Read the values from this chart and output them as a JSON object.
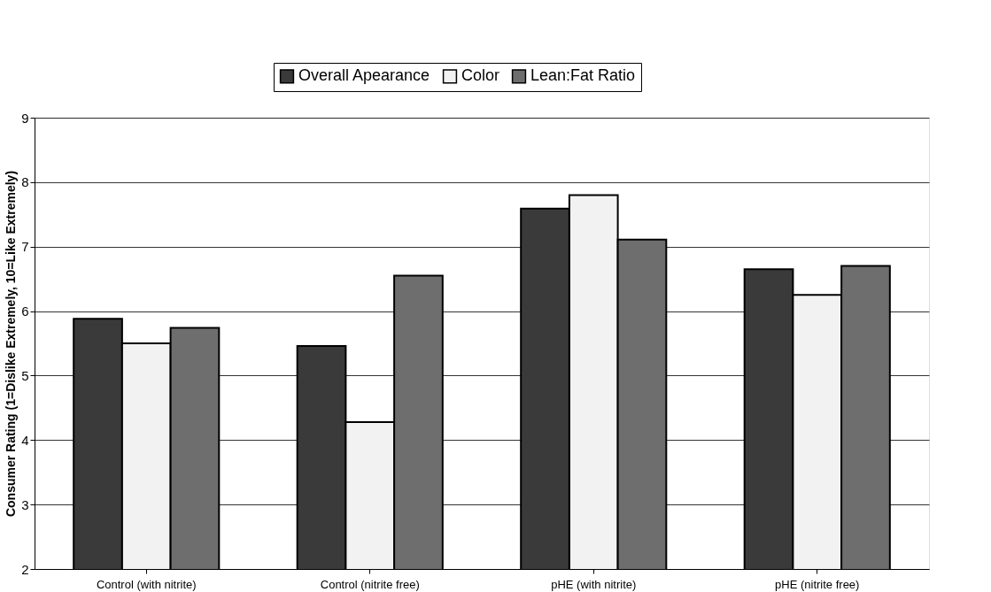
{
  "chart_data": {
    "type": "bar",
    "ylabel": "Consumer Rating (1=Dislike Extremely, 10=Like Extremely)",
    "categories": [
      "Control (with nitrite)",
      "Control (nitrite free)",
      "pHE (with nitrite)",
      "pHE (nitrite free)"
    ],
    "series": [
      {
        "name": "Overall Apearance",
        "color": "#3a3a3a",
        "values": [
          5.88,
          5.46,
          7.59,
          6.65
        ]
      },
      {
        "name": "Color",
        "color": "#f2f2f2",
        "values": [
          5.5,
          4.28,
          7.8,
          6.25
        ]
      },
      {
        "name": "Lean:Fat Ratio",
        "color": "#6e6e6e",
        "values": [
          5.74,
          6.55,
          7.11,
          6.7
        ]
      }
    ],
    "ylim": [
      2,
      9
    ],
    "yticks": [
      2,
      3,
      4,
      5,
      6,
      7,
      8,
      9
    ],
    "grid": "y",
    "legend": "top"
  }
}
